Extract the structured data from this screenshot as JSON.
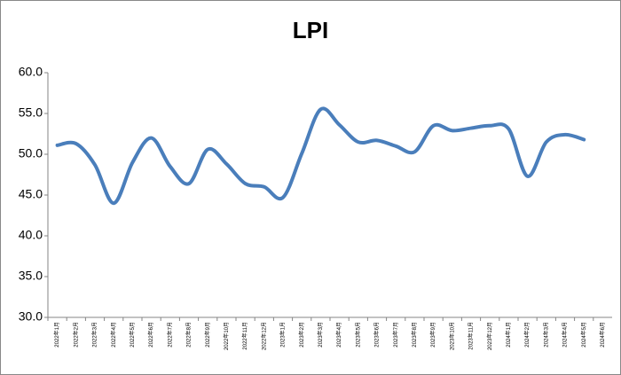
{
  "chart_data": {
    "type": "line",
    "title": "LPI",
    "categories": [
      "2022年1月",
      "2022年2月",
      "2022年3月",
      "2022年4月",
      "2022年5月",
      "2022年6月",
      "2022年7月",
      "2022年8月",
      "2022年9月",
      "2022年10月",
      "2022年11月",
      "2022年12月",
      "2023年1月",
      "2023年2月",
      "2023年3月",
      "2023年4月",
      "2023年5月",
      "2023年6月",
      "2023年7月",
      "2023年8月",
      "2023年9月",
      "2023年10月",
      "2023年11月",
      "2023年12月",
      "2024年1月",
      "2024年2月",
      "2024年3月",
      "2024年4月",
      "2024年5月",
      "2024年6月"
    ],
    "values": [
      51.1,
      51.3,
      48.7,
      44.0,
      49.0,
      52.0,
      48.5,
      46.4,
      50.6,
      48.8,
      46.4,
      46.0,
      44.7,
      50.1,
      55.5,
      53.6,
      51.5,
      51.7,
      51.0,
      50.3,
      53.5,
      52.9,
      53.2,
      53.5,
      53.1,
      47.3,
      51.5,
      52.4,
      51.8,
      null
    ],
    "color": "#4a7ebb",
    "ylim": [
      30,
      60
    ],
    "yticks": [
      {
        "value": 30,
        "label": "30.0"
      },
      {
        "value": 35,
        "label": "35.0"
      },
      {
        "value": 40,
        "label": "40.0"
      },
      {
        "value": 45,
        "label": "45.0"
      },
      {
        "value": 50,
        "label": "50.0"
      },
      {
        "value": 55,
        "label": "55.0"
      },
      {
        "value": 60,
        "label": "60.0"
      }
    ],
    "grid": false
  }
}
